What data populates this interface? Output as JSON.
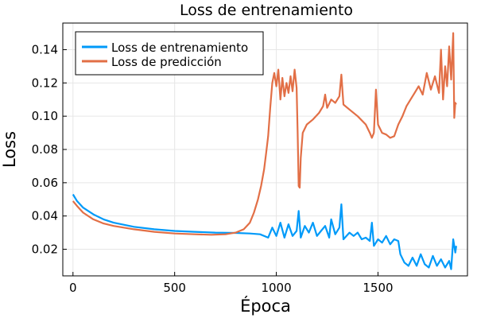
{
  "chart_data": {
    "type": "line",
    "title": "Loss de entrenamiento",
    "xlabel": "Época",
    "ylabel": "Loss",
    "xlim": [
      -50,
      1940
    ],
    "ylim": [
      0.004,
      0.156
    ],
    "x_ticks": [
      0,
      500,
      1000,
      1500
    ],
    "y_ticks": [
      0.02,
      0.04,
      0.06,
      0.08,
      0.1,
      0.12,
      0.14
    ],
    "x_tick_labels": [
      "0",
      "500",
      "1000",
      "1500"
    ],
    "y_tick_labels": [
      "0.02",
      "0.04",
      "0.06",
      "0.08",
      "0.10",
      "0.12",
      "0.14"
    ],
    "grid": true,
    "legend_position": "top-left",
    "series": [
      {
        "name": "Loss de entrenamiento",
        "color": "#009af9",
        "points": [
          [
            0,
            0.053
          ],
          [
            20,
            0.049
          ],
          [
            50,
            0.045
          ],
          [
            100,
            0.041
          ],
          [
            150,
            0.038
          ],
          [
            200,
            0.036
          ],
          [
            300,
            0.0335
          ],
          [
            400,
            0.032
          ],
          [
            500,
            0.031
          ],
          [
            600,
            0.0305
          ],
          [
            700,
            0.03
          ],
          [
            800,
            0.0298
          ],
          [
            870,
            0.0295
          ],
          [
            920,
            0.029
          ],
          [
            960,
            0.027
          ],
          [
            980,
            0.033
          ],
          [
            1000,
            0.028
          ],
          [
            1020,
            0.036
          ],
          [
            1040,
            0.027
          ],
          [
            1060,
            0.035
          ],
          [
            1080,
            0.028
          ],
          [
            1100,
            0.031
          ],
          [
            1110,
            0.043
          ],
          [
            1120,
            0.027
          ],
          [
            1140,
            0.034
          ],
          [
            1160,
            0.03
          ],
          [
            1180,
            0.036
          ],
          [
            1200,
            0.028
          ],
          [
            1220,
            0.031
          ],
          [
            1240,
            0.034
          ],
          [
            1260,
            0.027
          ],
          [
            1270,
            0.038
          ],
          [
            1290,
            0.029
          ],
          [
            1310,
            0.033
          ],
          [
            1320,
            0.047
          ],
          [
            1330,
            0.026
          ],
          [
            1360,
            0.03
          ],
          [
            1380,
            0.028
          ],
          [
            1400,
            0.03
          ],
          [
            1420,
            0.026
          ],
          [
            1440,
            0.027
          ],
          [
            1460,
            0.025
          ],
          [
            1470,
            0.036
          ],
          [
            1480,
            0.022
          ],
          [
            1500,
            0.026
          ],
          [
            1520,
            0.024
          ],
          [
            1540,
            0.028
          ],
          [
            1560,
            0.023
          ],
          [
            1580,
            0.026
          ],
          [
            1600,
            0.025
          ],
          [
            1610,
            0.017
          ],
          [
            1630,
            0.012
          ],
          [
            1650,
            0.01
          ],
          [
            1670,
            0.015
          ],
          [
            1690,
            0.01
          ],
          [
            1710,
            0.017
          ],
          [
            1730,
            0.011
          ],
          [
            1750,
            0.009
          ],
          [
            1770,
            0.016
          ],
          [
            1790,
            0.01
          ],
          [
            1810,
            0.014
          ],
          [
            1830,
            0.009
          ],
          [
            1850,
            0.013
          ],
          [
            1860,
            0.008
          ],
          [
            1870,
            0.026
          ],
          [
            1880,
            0.018
          ],
          [
            1885,
            0.022
          ]
        ]
      },
      {
        "name": "Loss de predicción",
        "color": "#e26f46",
        "points": [
          [
            0,
            0.049
          ],
          [
            20,
            0.046
          ],
          [
            50,
            0.042
          ],
          [
            100,
            0.038
          ],
          [
            150,
            0.0355
          ],
          [
            200,
            0.034
          ],
          [
            300,
            0.032
          ],
          [
            400,
            0.0305
          ],
          [
            500,
            0.0295
          ],
          [
            600,
            0.029
          ],
          [
            680,
            0.0287
          ],
          [
            750,
            0.029
          ],
          [
            800,
            0.03
          ],
          [
            840,
            0.032
          ],
          [
            870,
            0.036
          ],
          [
            890,
            0.042
          ],
          [
            910,
            0.05
          ],
          [
            925,
            0.058
          ],
          [
            940,
            0.068
          ],
          [
            950,
            0.078
          ],
          [
            960,
            0.088
          ],
          [
            970,
            0.105
          ],
          [
            980,
            0.12
          ],
          [
            990,
            0.126
          ],
          [
            1000,
            0.118
          ],
          [
            1010,
            0.128
          ],
          [
            1020,
            0.11
          ],
          [
            1030,
            0.123
          ],
          [
            1040,
            0.112
          ],
          [
            1050,
            0.12
          ],
          [
            1060,
            0.114
          ],
          [
            1070,
            0.124
          ],
          [
            1080,
            0.115
          ],
          [
            1090,
            0.128
          ],
          [
            1100,
            0.117
          ],
          [
            1105,
            0.09
          ],
          [
            1110,
            0.058
          ],
          [
            1115,
            0.057
          ],
          [
            1120,
            0.075
          ],
          [
            1130,
            0.09
          ],
          [
            1150,
            0.095
          ],
          [
            1180,
            0.098
          ],
          [
            1210,
            0.102
          ],
          [
            1230,
            0.106
          ],
          [
            1240,
            0.113
          ],
          [
            1250,
            0.105
          ],
          [
            1270,
            0.11
          ],
          [
            1290,
            0.108
          ],
          [
            1310,
            0.112
          ],
          [
            1320,
            0.125
          ],
          [
            1330,
            0.107
          ],
          [
            1360,
            0.104
          ],
          [
            1400,
            0.1
          ],
          [
            1440,
            0.095
          ],
          [
            1460,
            0.09
          ],
          [
            1470,
            0.087
          ],
          [
            1480,
            0.09
          ],
          [
            1490,
            0.116
          ],
          [
            1500,
            0.095
          ],
          [
            1520,
            0.09
          ],
          [
            1540,
            0.089
          ],
          [
            1560,
            0.087
          ],
          [
            1580,
            0.088
          ],
          [
            1600,
            0.095
          ],
          [
            1620,
            0.1
          ],
          [
            1640,
            0.106
          ],
          [
            1660,
            0.11
          ],
          [
            1680,
            0.114
          ],
          [
            1700,
            0.118
          ],
          [
            1720,
            0.113
          ],
          [
            1740,
            0.126
          ],
          [
            1760,
            0.116
          ],
          [
            1780,
            0.124
          ],
          [
            1800,
            0.114
          ],
          [
            1810,
            0.14
          ],
          [
            1820,
            0.11
          ],
          [
            1830,
            0.13
          ],
          [
            1840,
            0.118
          ],
          [
            1850,
            0.142
          ],
          [
            1860,
            0.122
          ],
          [
            1870,
            0.15
          ],
          [
            1875,
            0.099
          ],
          [
            1880,
            0.108
          ],
          [
            1885,
            0.107
          ]
        ]
      }
    ]
  }
}
